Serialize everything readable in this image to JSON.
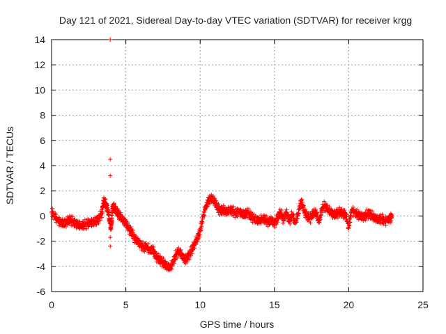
{
  "chart_data": {
    "type": "scatter",
    "title": "Day 121 of 2021, Sidereal Day-to-day VTEC variation (SDTVAR) for receiver krgg",
    "xlabel": "GPS time / hours",
    "ylabel": "SDTVAR / TECUs",
    "xlim": [
      0,
      25
    ],
    "ylim": [
      -6,
      14
    ],
    "x_ticks": [
      0,
      5,
      10,
      15,
      20,
      25
    ],
    "y_ticks": [
      -6,
      -4,
      -2,
      0,
      2,
      4,
      6,
      8,
      10,
      12,
      14
    ],
    "grid": true,
    "marker": "+",
    "marker_color": "#ff0000",
    "series": [
      {
        "name": "SDTVAR",
        "x": [
          0.0,
          0.2,
          0.4,
          0.6,
          0.8,
          1.0,
          1.2,
          1.4,
          1.6,
          1.8,
          2.0,
          2.2,
          2.4,
          2.6,
          2.8,
          3.0,
          3.2,
          3.4,
          3.5,
          3.6,
          3.7,
          3.8,
          3.9,
          4.0,
          4.05,
          4.1,
          4.2,
          4.3,
          4.4,
          4.5,
          4.6,
          4.8,
          5.0,
          5.2,
          5.4,
          5.6,
          5.8,
          6.0,
          6.2,
          6.4,
          6.6,
          6.8,
          7.0,
          7.2,
          7.4,
          7.6,
          7.8,
          8.0,
          8.2,
          8.4,
          8.6,
          8.8,
          9.0,
          9.2,
          9.4,
          9.6,
          9.8,
          10.0,
          10.2,
          10.4,
          10.6,
          10.8,
          11.0,
          11.2,
          11.4,
          11.6,
          11.8,
          12.0,
          12.2,
          12.4,
          12.6,
          12.8,
          13.0,
          13.2,
          13.4,
          13.6,
          13.8,
          14.0,
          14.2,
          14.4,
          14.6,
          14.8,
          15.0,
          15.2,
          15.4,
          15.6,
          15.8,
          16.0,
          16.2,
          16.4,
          16.6,
          16.8,
          17.0,
          17.2,
          17.4,
          17.6,
          17.8,
          18.0,
          18.2,
          18.4,
          18.6,
          18.8,
          19.0,
          19.2,
          19.4,
          19.6,
          19.8,
          20.0,
          20.2,
          20.4,
          20.6,
          20.8,
          21.0,
          21.2,
          21.4,
          21.6,
          21.8,
          22.0,
          22.2,
          22.4,
          22.6,
          22.8,
          22.9,
          3.95,
          3.95,
          3.95,
          3.95,
          3.95
        ],
        "y": [
          0.3,
          0.0,
          -0.3,
          -0.5,
          -0.6,
          -0.5,
          -0.3,
          -0.4,
          -0.6,
          -0.7,
          -0.8,
          -0.7,
          -0.6,
          -0.5,
          -0.5,
          -0.4,
          -0.2,
          0.3,
          1.2,
          1.0,
          0.8,
          0.4,
          -0.3,
          -1.0,
          -0.2,
          0.6,
          0.8,
          0.5,
          0.3,
          0.2,
          0.0,
          -0.3,
          -0.6,
          -1.0,
          -1.3,
          -1.8,
          -2.0,
          -2.3,
          -2.5,
          -2.4,
          -2.8,
          -2.6,
          -3.2,
          -3.4,
          -3.6,
          -3.8,
          -4.0,
          -4.1,
          -3.6,
          -3.0,
          -2.8,
          -3.2,
          -3.5,
          -3.2,
          -2.8,
          -2.3,
          -1.8,
          -1.2,
          0.0,
          0.8,
          1.3,
          1.4,
          1.1,
          0.6,
          0.4,
          0.5,
          0.3,
          0.5,
          0.4,
          0.2,
          0.4,
          0.2,
          0.1,
          0.3,
          0.0,
          -0.2,
          -0.3,
          -0.4,
          -0.2,
          -0.3,
          -0.5,
          -0.3,
          -0.6,
          -0.2,
          0.3,
          -0.3,
          0.3,
          -0.4,
          0.1,
          -0.6,
          0.2,
          1.2,
          0.4,
          0.0,
          -0.2,
          0.2,
          0.3,
          -0.5,
          0.6,
          0.8,
          0.5,
          0.3,
          0.1,
          0.2,
          0.3,
          0.2,
          0.1,
          -0.9,
          0.5,
          0.3,
          0.1,
          0.0,
          -0.1,
          0.1,
          0.2,
          0.0,
          -0.2,
          -0.3,
          -0.2,
          -0.4,
          -0.3,
          -0.2,
          0.0,
          14.0,
          4.5,
          3.2,
          -1.7,
          -2.4
        ]
      }
    ]
  }
}
